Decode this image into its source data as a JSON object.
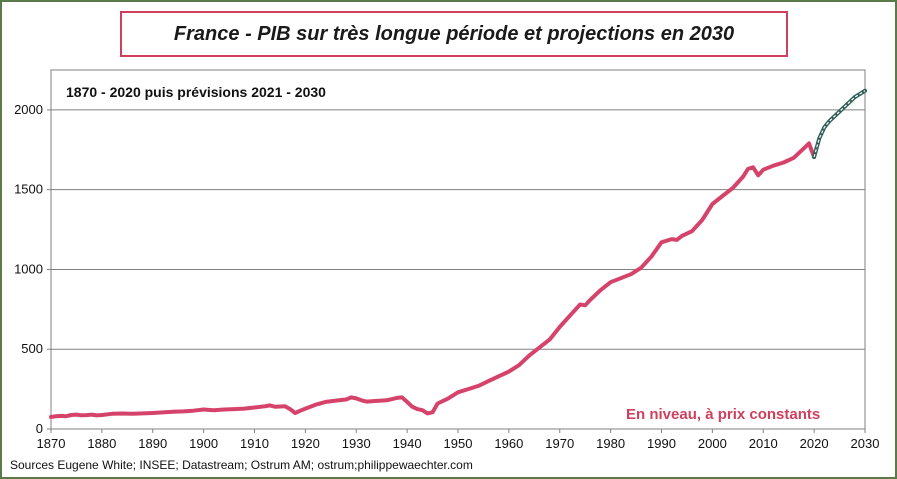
{
  "title": "France - PIB sur très longue période et projections en 2030",
  "subtitle": "1870 - 2020 puis prévisions 2021 - 2030",
  "annotation": "En niveau, à prix constants",
  "source": "Sources Eugene White; INSEE; Datastream; Ostrum AM; ostrum;philippewaechter.com",
  "colors": {
    "historical": "#d6436a",
    "forecast": "#2f5d57",
    "grid": "#808080",
    "frame": "#5a7a4a"
  },
  "chart_data": {
    "type": "line",
    "title": "France - PIB sur très longue période et projections en 2030",
    "subtitle": "1870 - 2020 puis prévisions 2021 - 2030",
    "xlabel": "",
    "ylabel": "",
    "xlim": [
      1870,
      2030
    ],
    "ylim": [
      0,
      2250
    ],
    "x_ticks": [
      1870,
      1880,
      1890,
      1900,
      1910,
      1920,
      1930,
      1940,
      1950,
      1960,
      1970,
      1980,
      1990,
      2000,
      2010,
      2020,
      2030
    ],
    "y_ticks": [
      0,
      500,
      1000,
      1500,
      2000
    ],
    "grid": "horizontal",
    "series": [
      {
        "style": "historical",
        "points": [
          [
            1870,
            75
          ],
          [
            1871,
            80
          ],
          [
            1872,
            82
          ],
          [
            1873,
            80
          ],
          [
            1874,
            88
          ],
          [
            1875,
            90
          ],
          [
            1876,
            86
          ],
          [
            1877,
            87
          ],
          [
            1878,
            90
          ],
          [
            1879,
            85
          ],
          [
            1880,
            88
          ],
          [
            1882,
            95
          ],
          [
            1884,
            97
          ],
          [
            1886,
            96
          ],
          [
            1888,
            98
          ],
          [
            1890,
            100
          ],
          [
            1892,
            104
          ],
          [
            1894,
            108
          ],
          [
            1896,
            110
          ],
          [
            1898,
            115
          ],
          [
            1900,
            122
          ],
          [
            1902,
            118
          ],
          [
            1904,
            122
          ],
          [
            1906,
            125
          ],
          [
            1908,
            128
          ],
          [
            1910,
            135
          ],
          [
            1912,
            142
          ],
          [
            1913,
            148
          ],
          [
            1914,
            140
          ],
          [
            1916,
            142
          ],
          [
            1917,
            125
          ],
          [
            1918,
            100
          ],
          [
            1919,
            115
          ],
          [
            1920,
            128
          ],
          [
            1922,
            152
          ],
          [
            1924,
            170
          ],
          [
            1926,
            178
          ],
          [
            1928,
            185
          ],
          [
            1929,
            198
          ],
          [
            1930,
            192
          ],
          [
            1931,
            180
          ],
          [
            1932,
            172
          ],
          [
            1934,
            176
          ],
          [
            1936,
            180
          ],
          [
            1938,
            195
          ],
          [
            1939,
            198
          ],
          [
            1940,
            170
          ],
          [
            1941,
            140
          ],
          [
            1942,
            125
          ],
          [
            1943,
            118
          ],
          [
            1944,
            98
          ],
          [
            1945,
            105
          ],
          [
            1946,
            160
          ],
          [
            1948,
            190
          ],
          [
            1950,
            230
          ],
          [
            1952,
            250
          ],
          [
            1954,
            270
          ],
          [
            1956,
            300
          ],
          [
            1958,
            330
          ],
          [
            1960,
            360
          ],
          [
            1962,
            400
          ],
          [
            1964,
            460
          ],
          [
            1966,
            510
          ],
          [
            1968,
            560
          ],
          [
            1970,
            640
          ],
          [
            1972,
            710
          ],
          [
            1974,
            780
          ],
          [
            1975,
            775
          ],
          [
            1976,
            810
          ],
          [
            1978,
            870
          ],
          [
            1980,
            920
          ],
          [
            1982,
            945
          ],
          [
            1984,
            970
          ],
          [
            1986,
            1010
          ],
          [
            1988,
            1080
          ],
          [
            1990,
            1170
          ],
          [
            1992,
            1190
          ],
          [
            1993,
            1185
          ],
          [
            1994,
            1210
          ],
          [
            1996,
            1240
          ],
          [
            1998,
            1310
          ],
          [
            2000,
            1410
          ],
          [
            2002,
            1460
          ],
          [
            2004,
            1510
          ],
          [
            2006,
            1580
          ],
          [
            2007,
            1630
          ],
          [
            2008,
            1640
          ],
          [
            2009,
            1590
          ],
          [
            2010,
            1625
          ],
          [
            2012,
            1650
          ],
          [
            2014,
            1670
          ],
          [
            2016,
            1700
          ],
          [
            2018,
            1760
          ],
          [
            2019,
            1790
          ],
          [
            2020,
            1705
          ]
        ]
      },
      {
        "style": "forecast",
        "points": [
          [
            2020,
            1705
          ],
          [
            2021,
            1820
          ],
          [
            2022,
            1890
          ],
          [
            2023,
            1930
          ],
          [
            2024,
            1960
          ],
          [
            2025,
            1990
          ],
          [
            2026,
            2020
          ],
          [
            2027,
            2050
          ],
          [
            2028,
            2080
          ],
          [
            2029,
            2100
          ],
          [
            2030,
            2120
          ]
        ]
      }
    ]
  }
}
